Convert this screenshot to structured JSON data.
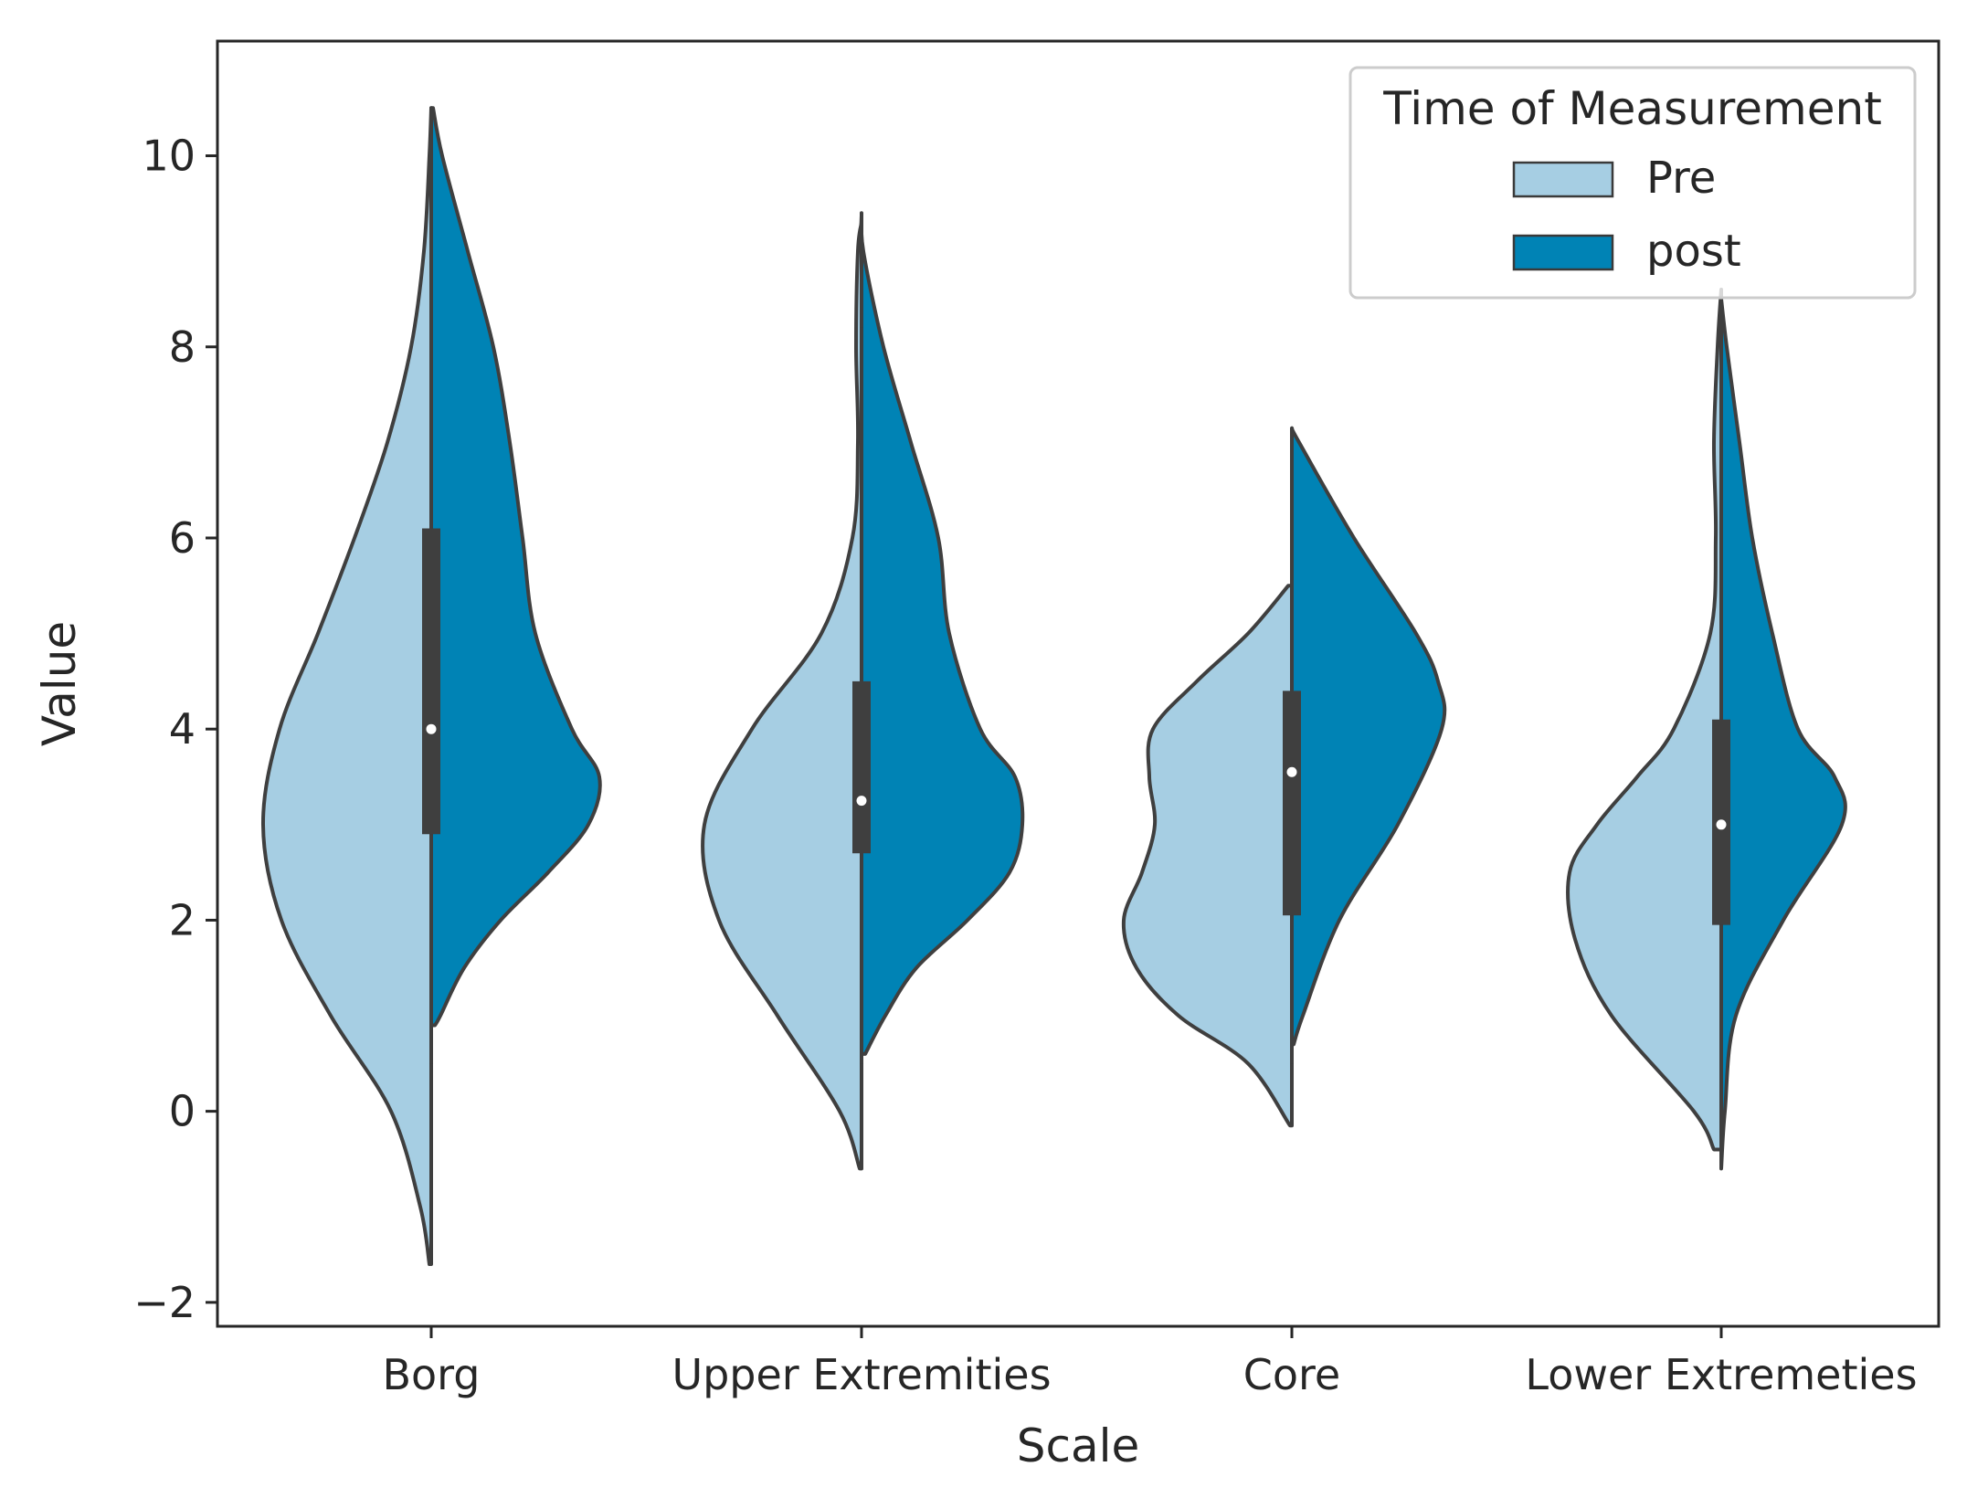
{
  "chart_data": {
    "type": "violin",
    "split": true,
    "title": "",
    "xlabel": "Scale",
    "ylabel": "Value",
    "categories": [
      "Borg",
      "Upper Extremities",
      "Core",
      "Lower Extremeties"
    ],
    "ylim": [
      -2.25,
      11.2
    ],
    "yticks": [
      -2,
      0,
      2,
      4,
      6,
      8,
      10
    ],
    "ytick_labels": [
      "−2",
      "0",
      "2",
      "4",
      "6",
      "8",
      "10"
    ],
    "grid": false,
    "legend": {
      "title": "Time of Measurement",
      "position": "top-right",
      "entries": [
        {
          "label": "Pre",
          "color": "#a6cee3"
        },
        {
          "label": "post",
          "color": "#0083b5"
        }
      ]
    },
    "series": [
      {
        "name": "Pre",
        "color": "#a6cee3",
        "side": "left",
        "profiles": [
          [
            [
              -1.6,
              0.01
            ],
            [
              -1.0,
              0.06
            ],
            [
              0.0,
              0.22
            ],
            [
              1.0,
              0.55
            ],
            [
              2.0,
              0.82
            ],
            [
              3.0,
              0.92
            ],
            [
              4.0,
              0.83
            ],
            [
              5.0,
              0.62
            ],
            [
              6.0,
              0.42
            ],
            [
              7.0,
              0.24
            ],
            [
              8.0,
              0.11
            ],
            [
              9.0,
              0.04
            ],
            [
              10.0,
              0.01
            ],
            [
              10.5,
              0.0
            ]
          ],
          [
            [
              -0.6,
              0.01
            ],
            [
              0.0,
              0.12
            ],
            [
              1.0,
              0.46
            ],
            [
              2.0,
              0.78
            ],
            [
              3.0,
              0.86
            ],
            [
              4.0,
              0.6
            ],
            [
              5.0,
              0.22
            ],
            [
              6.0,
              0.05
            ],
            [
              7.0,
              0.02
            ],
            [
              8.0,
              0.03
            ],
            [
              9.0,
              0.02
            ],
            [
              9.3,
              0.0
            ]
          ],
          [
            [
              -0.15,
              0.01
            ],
            [
              0.5,
              0.24
            ],
            [
              1.0,
              0.62
            ],
            [
              1.5,
              0.85
            ],
            [
              2.0,
              0.92
            ],
            [
              2.5,
              0.82
            ],
            [
              3.0,
              0.75
            ],
            [
              3.5,
              0.78
            ],
            [
              4.0,
              0.76
            ],
            [
              4.5,
              0.52
            ],
            [
              5.0,
              0.24
            ],
            [
              5.5,
              0.02
            ]
          ],
          [
            [
              -0.4,
              0.04
            ],
            [
              0.0,
              0.15
            ],
            [
              1.0,
              0.6
            ],
            [
              1.8,
              0.8
            ],
            [
              2.5,
              0.83
            ],
            [
              3.0,
              0.68
            ],
            [
              3.5,
              0.46
            ],
            [
              4.0,
              0.26
            ],
            [
              5.0,
              0.06
            ],
            [
              6.0,
              0.03
            ],
            [
              7.0,
              0.04
            ],
            [
              8.0,
              0.02
            ],
            [
              8.6,
              0.0
            ]
          ]
        ],
        "median": [
          4.0,
          3.25,
          3.55,
          3.0
        ],
        "q1": [
          2.9,
          2.7,
          2.05,
          1.95
        ],
        "q3": [
          6.1,
          4.5,
          4.4,
          4.1
        ],
        "whisker_low": [
          0.5,
          0.5,
          0.5,
          -0.3
        ],
        "whisker_high": [
          10.0,
          8.2,
          6.0,
          7.5
        ]
      },
      {
        "name": "post",
        "color": "#0083b5",
        "side": "right",
        "profiles": [
          [
            [
              0.9,
              0.02
            ],
            [
              1.0,
              0.05
            ],
            [
              1.5,
              0.18
            ],
            [
              2.0,
              0.38
            ],
            [
              2.5,
              0.64
            ],
            [
              3.0,
              0.86
            ],
            [
              3.5,
              0.92
            ],
            [
              4.0,
              0.77
            ],
            [
              5.0,
              0.57
            ],
            [
              6.0,
              0.5
            ],
            [
              7.0,
              0.43
            ],
            [
              8.0,
              0.34
            ],
            [
              9.0,
              0.2
            ],
            [
              10.0,
              0.06
            ],
            [
              10.5,
              0.01
            ]
          ],
          [
            [
              0.6,
              0.02
            ],
            [
              1.0,
              0.13
            ],
            [
              1.5,
              0.3
            ],
            [
              2.0,
              0.58
            ],
            [
              2.5,
              0.81
            ],
            [
              3.0,
              0.88
            ],
            [
              3.5,
              0.84
            ],
            [
              4.0,
              0.65
            ],
            [
              5.0,
              0.48
            ],
            [
              6.0,
              0.42
            ],
            [
              7.0,
              0.27
            ],
            [
              8.0,
              0.12
            ],
            [
              9.0,
              0.01
            ],
            [
              9.4,
              0.0
            ]
          ],
          [
            [
              0.7,
              0.01
            ],
            [
              1.0,
              0.06
            ],
            [
              2.0,
              0.26
            ],
            [
              3.0,
              0.58
            ],
            [
              4.0,
              0.82
            ],
            [
              4.5,
              0.8
            ],
            [
              5.0,
              0.68
            ],
            [
              6.0,
              0.34
            ],
            [
              7.0,
              0.04
            ],
            [
              7.15,
              0.0
            ]
          ],
          [
            [
              -0.6,
              0.0
            ],
            [
              0.0,
              0.02
            ],
            [
              1.0,
              0.08
            ],
            [
              2.0,
              0.34
            ],
            [
              3.0,
              0.66
            ],
            [
              3.5,
              0.62
            ],
            [
              4.0,
              0.42
            ],
            [
              5.0,
              0.28
            ],
            [
              6.0,
              0.17
            ],
            [
              7.0,
              0.1
            ],
            [
              8.0,
              0.03
            ],
            [
              8.5,
              0.0
            ]
          ]
        ]
      }
    ]
  }
}
